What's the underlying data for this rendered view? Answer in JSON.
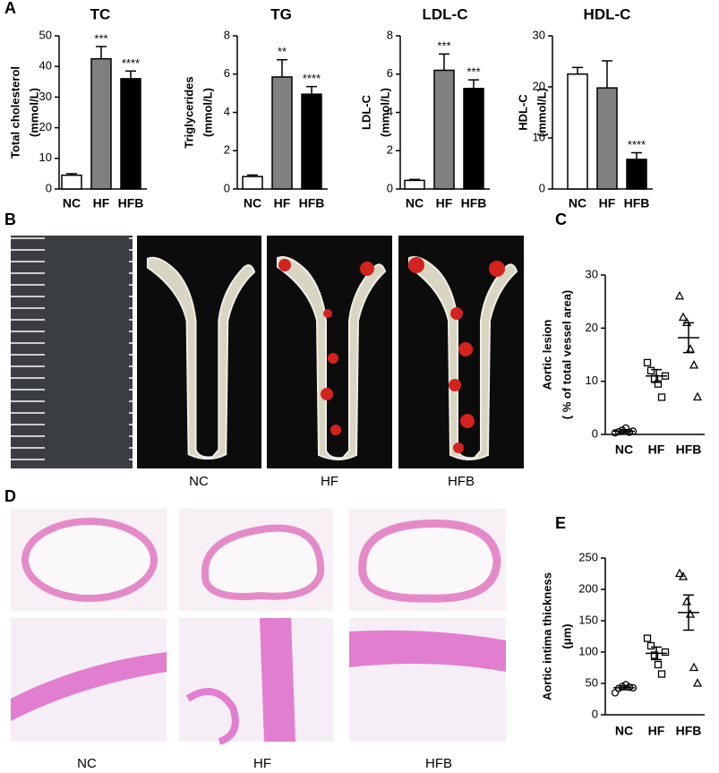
{
  "panel_labels": [
    "A",
    "B",
    "C",
    "D",
    "E"
  ],
  "photo_labels": [
    "NC",
    "HF",
    "HFB"
  ],
  "histology_labels": [
    "NC",
    "HF",
    "HFB"
  ],
  "chart_data": [
    {
      "type": "bar",
      "title": "TC",
      "ylabel": [
        "Total cholesterol",
        "(mmol/L)"
      ],
      "categories": [
        "NC",
        "HF",
        "HFB"
      ],
      "values": [
        4.5,
        42.5,
        36
      ],
      "errors": [
        0.5,
        4,
        2.5
      ],
      "annotations": [
        null,
        "***",
        "****"
      ],
      "colors": [
        "#ffffff",
        "#808080",
        "#000000"
      ],
      "ylim": [
        0,
        50
      ],
      "yticks": [
        0,
        10,
        20,
        30,
        40,
        50
      ]
    },
    {
      "type": "bar",
      "title": "TG",
      "ylabel": [
        "Triglycerides",
        "(mmol/L)"
      ],
      "categories": [
        "NC",
        "HF",
        "HFB"
      ],
      "values": [
        0.65,
        5.85,
        4.95
      ],
      "errors": [
        0.08,
        0.9,
        0.4
      ],
      "annotations": [
        null,
        "**",
        "****"
      ],
      "colors": [
        "#ffffff",
        "#808080",
        "#000000"
      ],
      "ylim": [
        0,
        8
      ],
      "yticks": [
        0,
        2,
        4,
        6,
        8
      ]
    },
    {
      "type": "bar",
      "title": "LDL-C",
      "ylabel": [
        "LDL-C",
        "(mmol/L)"
      ],
      "categories": [
        "NC",
        "HF",
        "HFB"
      ],
      "values": [
        0.45,
        6.2,
        5.25
      ],
      "errors": [
        0.05,
        0.85,
        0.45
      ],
      "annotations": [
        null,
        "***",
        "***"
      ],
      "colors": [
        "#ffffff",
        "#808080",
        "#000000"
      ],
      "ylim": [
        0,
        8
      ],
      "yticks": [
        0,
        2,
        4,
        6,
        8
      ]
    },
    {
      "type": "bar",
      "title": "HDL-C",
      "ylabel": [
        "HDL-C",
        "(mmol/L)"
      ],
      "categories": [
        "NC",
        "HF",
        "HFB"
      ],
      "values": [
        22.5,
        19.8,
        5.8
      ],
      "errors": [
        1.3,
        5.3,
        1.3
      ],
      "annotations": [
        null,
        null,
        "****"
      ],
      "colors": [
        "#ffffff",
        "#808080",
        "#000000"
      ],
      "ylim": [
        0,
        30
      ],
      "yticks": [
        0,
        10,
        20,
        30
      ]
    },
    {
      "type": "scatter",
      "ylabel": [
        "Aortic lesion",
        "( % of total vessel area)"
      ],
      "categories": [
        "NC",
        "HF",
        "HFB"
      ],
      "points": [
        [
          0.3,
          0.5,
          0.8,
          1.2,
          0.4,
          0.6
        ],
        [
          13.5,
          12,
          10.5,
          9.5,
          7,
          11
        ],
        [
          26,
          22,
          21,
          16,
          13,
          7
        ]
      ],
      "means": [
        0.6,
        11,
        18.2
      ],
      "errors": [
        0.3,
        1.2,
        2.8
      ],
      "markers": [
        "circle",
        "square",
        "triangle"
      ],
      "ylim": [
        0,
        30
      ],
      "yticks": [
        0,
        10,
        20,
        30
      ]
    },
    {
      "type": "scatter",
      "ylabel": [
        "Aortic intima thickness",
        "(μm)"
      ],
      "categories": [
        "NC",
        "HF",
        "HFB"
      ],
      "points": [
        [
          35,
          42,
          45,
          48,
          44,
          43
        ],
        [
          122,
          110,
          95,
          80,
          65,
          100
        ],
        [
          225,
          220,
          180,
          160,
          75,
          50
        ]
      ],
      "means": [
        43,
        98,
        163
      ],
      "errors": [
        3,
        10,
        28
      ],
      "markers": [
        "circle",
        "square",
        "triangle"
      ],
      "ylim": [
        0,
        250
      ],
      "yticks": [
        0,
        50,
        100,
        150,
        200,
        250
      ]
    }
  ]
}
